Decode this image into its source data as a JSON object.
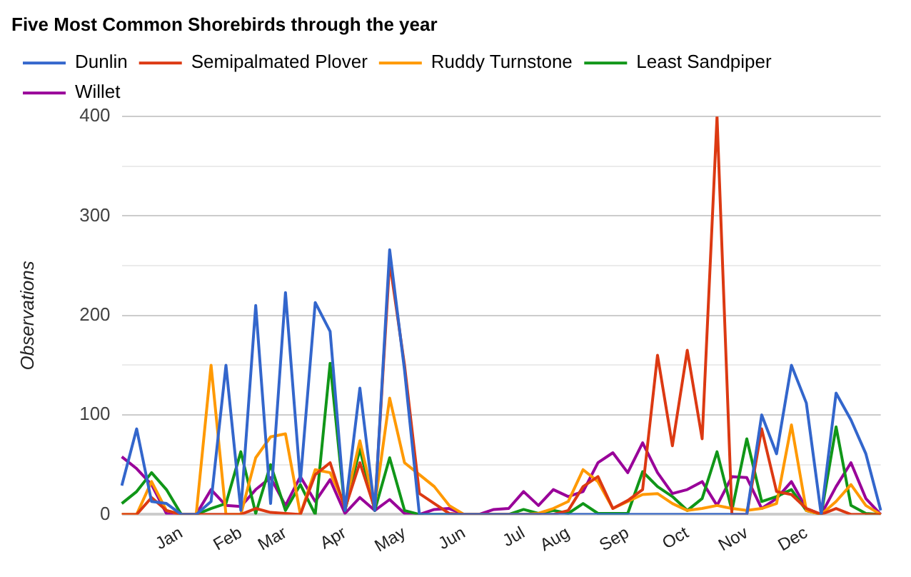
{
  "chart_data": {
    "type": "line",
    "title": "Five Most Common Shorebirds through the year",
    "ylabel": "Observations",
    "categories": [
      null,
      null,
      null,
      null,
      "Jan",
      null,
      null,
      null,
      "Feb",
      null,
      null,
      "Mar",
      null,
      null,
      null,
      "Apr",
      null,
      null,
      null,
      "May",
      null,
      null,
      null,
      "Jun",
      null,
      null,
      null,
      "Jul",
      null,
      null,
      "Aug",
      null,
      null,
      null,
      "Sep",
      null,
      null,
      null,
      "Oct",
      null,
      null,
      null,
      "Nov",
      null,
      null,
      null,
      "Dec",
      null,
      null,
      null,
      null,
      null
    ],
    "series": [
      {
        "name": "Dunlin",
        "color": "#3366cc",
        "values": [
          29,
          86,
          13,
          11,
          0,
          0,
          13,
          150,
          4,
          210,
          11,
          223,
          33,
          213,
          184,
          4,
          127,
          4,
          266,
          145,
          0,
          0,
          0,
          0,
          0,
          0,
          0,
          0,
          0,
          0,
          0,
          0,
          0,
          0,
          0,
          0,
          0,
          0,
          0,
          0,
          0,
          0,
          0,
          100,
          61,
          150,
          112,
          0,
          122,
          95,
          61,
          4
        ]
      },
      {
        "name": "Semipalmated Plover",
        "color": "#dc3912",
        "values": [
          0,
          0,
          17,
          4,
          0,
          0,
          0,
          0,
          0,
          6,
          2,
          1,
          0,
          40,
          52,
          6,
          52,
          6,
          254,
          150,
          21,
          11,
          1,
          0,
          0,
          0,
          0,
          0,
          0,
          0,
          4,
          28,
          38,
          6,
          14,
          25,
          160,
          69,
          165,
          76,
          400,
          0,
          0,
          86,
          23,
          20,
          6,
          0,
          6,
          0,
          0,
          0
        ]
      },
      {
        "name": "Ruddy Turnstone",
        "color": "#ff9900",
        "values": [
          0,
          0,
          33,
          4,
          0,
          0,
          150,
          0,
          0,
          57,
          78,
          81,
          0,
          45,
          42,
          9,
          74,
          9,
          117,
          52,
          40,
          28,
          9,
          0,
          0,
          0,
          0,
          0,
          1,
          6,
          13,
          45,
          33,
          6,
          13,
          20,
          21,
          11,
          4,
          6,
          9,
          6,
          4,
          6,
          11,
          90,
          4,
          0,
          13,
          30,
          9,
          0
        ]
      },
      {
        "name": "Least Sandpiper",
        "color": "#109618",
        "values": [
          11,
          23,
          42,
          25,
          0,
          0,
          6,
          11,
          63,
          1,
          50,
          4,
          30,
          0,
          152,
          4,
          66,
          4,
          57,
          4,
          0,
          0,
          0,
          0,
          0,
          0,
          0,
          5,
          1,
          4,
          1,
          11,
          1,
          1,
          1,
          43,
          28,
          18,
          4,
          16,
          63,
          4,
          76,
          13,
          18,
          25,
          4,
          0,
          88,
          9,
          1,
          0
        ]
      },
      {
        "name": "Willet",
        "color": "#990099",
        "values": [
          58,
          46,
          30,
          1,
          0,
          0,
          25,
          9,
          8,
          25,
          37,
          9,
          38,
          13,
          35,
          1,
          17,
          4,
          15,
          1,
          0,
          5,
          6,
          0,
          0,
          5,
          6,
          23,
          9,
          25,
          18,
          23,
          52,
          62,
          42,
          72,
          42,
          21,
          25,
          33,
          9,
          38,
          37,
          6,
          16,
          33,
          6,
          0,
          28,
          52,
          16,
          0
        ]
      }
    ],
    "ylim": [
      0,
      400
    ],
    "yticks": [
      0,
      {
        "value": 50,
        "label": null
      },
      100,
      {
        "value": 150,
        "label": null
      },
      200,
      {
        "value": 250,
        "label": null
      },
      300,
      {
        "value": 350,
        "label": null
      },
      400
    ],
    "grid": "y",
    "legend": "top left",
    "marker": "none",
    "line_style": "solid"
  }
}
